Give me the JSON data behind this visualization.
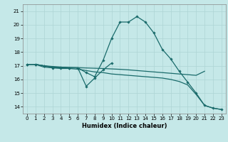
{
  "xlabel": "Humidex (Indice chaleur)",
  "xlim": [
    -0.5,
    23.5
  ],
  "ylim": [
    13.5,
    21.5
  ],
  "yticks": [
    14,
    15,
    16,
    17,
    18,
    19,
    20,
    21
  ],
  "xticks": [
    0,
    1,
    2,
    3,
    4,
    5,
    6,
    7,
    8,
    9,
    10,
    11,
    12,
    13,
    14,
    15,
    16,
    17,
    18,
    19,
    20,
    21,
    22,
    23
  ],
  "background_color": "#c5e8e8",
  "line_color": "#1a6b6b",
  "lines": [
    {
      "x": [
        0,
        1,
        2,
        3,
        4,
        5,
        6,
        7,
        8,
        9,
        10,
        11,
        12,
        13,
        14,
        15,
        16,
        17,
        18,
        19,
        20,
        21,
        22,
        23
      ],
      "y": [
        17.1,
        17.1,
        17.0,
        16.9,
        16.9,
        16.85,
        16.85,
        16.5,
        16.2,
        17.4,
        19.0,
        20.2,
        20.2,
        20.6,
        20.2,
        19.4,
        18.2,
        17.5,
        16.6,
        15.8,
        15.0,
        14.1,
        13.9,
        13.8
      ],
      "marker": "D",
      "marker_size": 1.8,
      "linewidth": 0.9
    },
    {
      "x": [
        0,
        1,
        2,
        3,
        4,
        5,
        6,
        7,
        8,
        9,
        10
      ],
      "y": [
        17.1,
        17.1,
        17.0,
        16.85,
        16.85,
        16.85,
        16.85,
        15.5,
        16.1,
        16.7,
        17.2
      ],
      "marker": "D",
      "marker_size": 1.8,
      "linewidth": 0.9
    },
    {
      "x": [
        0,
        1,
        2,
        3,
        4,
        5,
        6,
        7,
        8,
        9,
        10,
        11,
        12,
        13,
        14,
        15,
        16,
        17,
        18,
        19,
        20,
        21,
        22,
        23
      ],
      "y": [
        17.1,
        17.1,
        16.9,
        16.85,
        16.8,
        16.8,
        16.75,
        16.65,
        16.55,
        16.5,
        16.4,
        16.35,
        16.3,
        16.25,
        16.2,
        16.15,
        16.1,
        16.0,
        15.85,
        15.6,
        14.9,
        14.1,
        13.9,
        13.8
      ],
      "marker": null,
      "marker_size": 0,
      "linewidth": 0.9
    },
    {
      "x": [
        0,
        1,
        2,
        3,
        4,
        5,
        6,
        7,
        8,
        9,
        10,
        11,
        12,
        13,
        14,
        15,
        16,
        17,
        18,
        19,
        20,
        21,
        22,
        23
      ],
      "y": [
        17.1,
        17.1,
        17.0,
        16.95,
        16.9,
        16.88,
        16.86,
        16.84,
        16.82,
        16.8,
        16.77,
        16.74,
        16.7,
        16.65,
        16.6,
        16.55,
        16.5,
        16.45,
        16.4,
        16.35,
        16.3,
        16.6,
        null,
        null
      ],
      "marker": null,
      "marker_size": 0,
      "linewidth": 0.9
    }
  ]
}
